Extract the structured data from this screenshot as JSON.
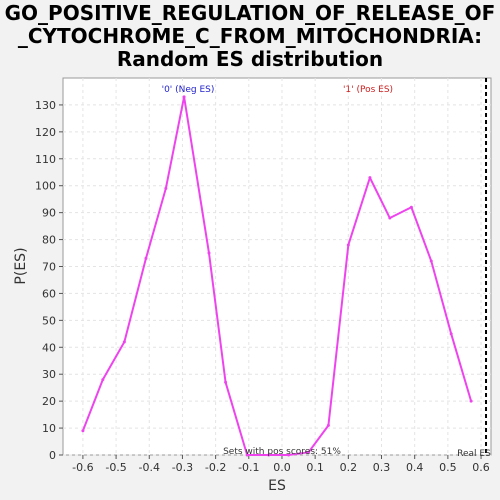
{
  "chart_data": {
    "type": "line",
    "title_lines": [
      "GO_POSITIVE_REGULATION_OF_RELEASE_OF",
      "_CYTOCHROME_C_FROM_MITOCHONDRIA:",
      "Random ES distribution"
    ],
    "xlabel": "ES",
    "ylabel": "P(ES)",
    "xlim": [
      -0.66,
      0.63
    ],
    "ylim": [
      0,
      140
    ],
    "x_ticks": [
      -0.6,
      -0.5,
      -0.4,
      -0.3,
      -0.2,
      -0.1,
      0.0,
      0.1,
      0.2,
      0.3,
      0.4,
      0.5,
      0.6
    ],
    "x_tick_labels": [
      "-0.6",
      "-0.5",
      "-0.4",
      "-0.3",
      "-0.2",
      "-0.1",
      "0.0",
      "0.1",
      "0.2",
      "0.3",
      "0.4",
      "0.5",
      "0.6"
    ],
    "y_ticks": [
      0,
      10,
      20,
      30,
      40,
      50,
      60,
      70,
      80,
      90,
      100,
      110,
      120,
      130
    ],
    "grid": true,
    "series": [
      {
        "color": "#ee44ee",
        "x": [
          -0.6,
          -0.54,
          -0.475,
          -0.41,
          -0.35,
          -0.295,
          -0.22,
          -0.17,
          -0.105,
          -0.04,
          0.02,
          0.08,
          0.14,
          0.2,
          0.265,
          0.325,
          0.39,
          0.45,
          0.51,
          0.57
        ],
        "y": [
          9,
          28,
          42,
          73,
          99,
          133,
          75,
          27,
          0,
          0,
          0,
          1,
          11,
          78,
          103,
          88,
          92,
          72,
          45,
          20
        ]
      }
    ],
    "real_es": 0.615,
    "annotations": {
      "neg_label": "'0' (Neg ES)",
      "pos_label": "'1' (Pos ES)",
      "pos_scores": "Sets with pos scores: 51%",
      "real_es_label": "Real ES"
    },
    "colors": {
      "neg": "#2222cc",
      "pos": "#cc2222",
      "real_es_line": "#000000"
    }
  }
}
